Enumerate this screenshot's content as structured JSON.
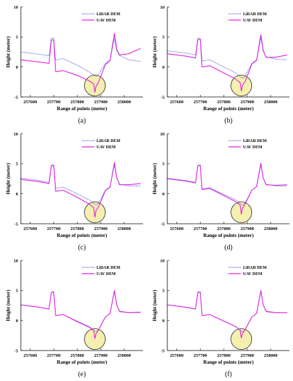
{
  "panel_colors": {
    "lidar": "#2f3fd8",
    "uav": "#e020e0",
    "circle_fill": "#f5efb0",
    "circle_stroke": "#222222"
  },
  "chart_data": [
    {
      "type": "line",
      "caption": "(a)",
      "xlabel": "Range of points (meter)",
      "ylabel": "Height (meter)",
      "xlim": [
        257560,
        258080
      ],
      "ylim": [
        -5,
        10
      ],
      "xticks": [
        257600,
        257700,
        257800,
        257900,
        258000
      ],
      "yticks": [
        10,
        5,
        0,
        -5
      ],
      "legend_position": "top-right",
      "highlight_circle_center": [
        257875,
        -3.1
      ],
      "series": [
        {
          "name": "LiDAR DEM",
          "style": "dotted",
          "x": [
            257560,
            257640,
            257680,
            257690,
            257700,
            257708,
            257740,
            257800,
            257850,
            257870,
            257880,
            257890,
            257920,
            257940,
            257958,
            257968,
            257980,
            258020,
            258070
          ],
          "y": [
            2.5,
            2.1,
            1.9,
            4.8,
            4.8,
            1.2,
            1.4,
            0.3,
            -0.8,
            -1.3,
            -1.6,
            -1.3,
            0.6,
            1.2,
            4.8,
            2.6,
            1.9,
            1.2,
            0.9
          ]
        },
        {
          "name": "UAV DEM",
          "style": "solid",
          "x": [
            257560,
            257640,
            257680,
            257690,
            257700,
            257708,
            257740,
            257800,
            257850,
            257870,
            257875,
            257880,
            257890,
            257920,
            257940,
            257958,
            257968,
            257980,
            258020,
            258070
          ],
          "y": [
            1.2,
            0.8,
            0.6,
            4.5,
            4.5,
            -0.8,
            -0.6,
            -1.4,
            -2.3,
            -2.8,
            -4.2,
            -3.2,
            -2.6,
            0.4,
            1.1,
            5.6,
            3.0,
            2.0,
            2.2,
            3.1
          ]
        }
      ]
    },
    {
      "type": "line",
      "caption": "(b)",
      "xlabel": "Range of points (meter)",
      "ylabel": "Height (meter)",
      "xlim": [
        257560,
        258080
      ],
      "ylim": [
        -5,
        10
      ],
      "xticks": [
        257600,
        257700,
        257800,
        257900,
        258000
      ],
      "yticks": [
        10,
        5,
        0,
        -5
      ],
      "legend_position": "top-right",
      "highlight_circle_center": [
        257875,
        -3.1
      ],
      "series": [
        {
          "name": "LiDAR DEM",
          "style": "dotted",
          "x": [
            257560,
            257640,
            257680,
            257690,
            257700,
            257708,
            257740,
            257800,
            257850,
            257870,
            257880,
            257890,
            257920,
            257940,
            257958,
            257968,
            257980,
            258020,
            258070
          ],
          "y": [
            2.7,
            2.3,
            2.0,
            4.8,
            4.8,
            1.0,
            1.2,
            0.0,
            -1.0,
            -1.6,
            -1.9,
            -1.6,
            0.6,
            1.2,
            4.8,
            2.6,
            1.7,
            1.3,
            1.2
          ]
        },
        {
          "name": "UAV DEM",
          "style": "solid",
          "x": [
            257560,
            257640,
            257680,
            257690,
            257700,
            257708,
            257740,
            257800,
            257850,
            257870,
            257875,
            257880,
            257890,
            257920,
            257940,
            257958,
            257968,
            257980,
            258020,
            258070
          ],
          "y": [
            2.2,
            1.8,
            1.5,
            4.6,
            4.6,
            0.0,
            0.2,
            -1.0,
            -2.0,
            -2.6,
            -4.0,
            -3.0,
            -2.5,
            0.5,
            1.1,
            5.4,
            2.8,
            1.6,
            1.6,
            2.0
          ]
        }
      ]
    },
    {
      "type": "line",
      "caption": "(c)",
      "xlabel": "Range of points (meter)",
      "ylabel": "Height (meter)",
      "xlim": [
        257560,
        258080
      ],
      "ylim": [
        -5,
        10
      ],
      "xticks": [
        257600,
        257700,
        257800,
        257900,
        258000
      ],
      "yticks": [
        10,
        5,
        0,
        -5
      ],
      "legend_position": "top-right",
      "highlight_circle_center": [
        257875,
        -3.1
      ],
      "series": [
        {
          "name": "LiDAR DEM",
          "style": "dotted",
          "x": [
            257560,
            257640,
            257680,
            257690,
            257700,
            257708,
            257740,
            257800,
            257850,
            257870,
            257880,
            257890,
            257920,
            257940,
            257958,
            257968,
            257980,
            258020,
            258070
          ],
          "y": [
            2.6,
            2.2,
            1.9,
            4.8,
            4.8,
            0.9,
            1.1,
            0.0,
            -1.0,
            -1.6,
            -1.9,
            -1.6,
            0.6,
            1.2,
            4.8,
            2.6,
            1.6,
            1.3,
            1.3
          ]
        },
        {
          "name": "UAV DEM",
          "style": "solid",
          "x": [
            257560,
            257640,
            257680,
            257690,
            257700,
            257708,
            257740,
            257800,
            257850,
            257870,
            257875,
            257880,
            257890,
            257920,
            257940,
            257958,
            257968,
            257980,
            258020,
            258070
          ],
          "y": [
            2.4,
            2.0,
            1.7,
            4.7,
            4.7,
            0.4,
            0.6,
            -0.6,
            -1.7,
            -2.3,
            -3.9,
            -2.8,
            -2.2,
            0.5,
            1.1,
            5.2,
            2.7,
            1.5,
            1.5,
            1.7
          ]
        }
      ]
    },
    {
      "type": "line",
      "caption": "(d)",
      "xlabel": "Range of points (meter)",
      "ylabel": "Height (meter)",
      "xlim": [
        257560,
        258080
      ],
      "ylim": [
        -5,
        10
      ],
      "xticks": [
        257600,
        257700,
        257800,
        257900,
        258000
      ],
      "yticks": [
        10,
        5,
        0,
        -5
      ],
      "legend_position": "top-right",
      "highlight_circle_center": [
        257875,
        -3.1
      ],
      "series": [
        {
          "name": "LiDAR DEM",
          "style": "dotted",
          "x": [
            257560,
            257640,
            257680,
            257690,
            257700,
            257708,
            257740,
            257800,
            257850,
            257870,
            257880,
            257890,
            257920,
            257940,
            257958,
            257968,
            257980,
            258020,
            258070
          ],
          "y": [
            2.6,
            2.2,
            1.9,
            4.8,
            4.8,
            0.8,
            1.0,
            -0.1,
            -1.0,
            -1.6,
            -1.9,
            -1.6,
            0.6,
            1.2,
            4.8,
            2.6,
            1.6,
            1.3,
            1.3
          ]
        },
        {
          "name": "UAV DEM",
          "style": "solid",
          "x": [
            257560,
            257640,
            257680,
            257690,
            257700,
            257708,
            257740,
            257800,
            257850,
            257870,
            257875,
            257880,
            257890,
            257920,
            257940,
            257958,
            257968,
            257980,
            258020,
            258070
          ],
          "y": [
            2.5,
            2.1,
            1.8,
            4.7,
            4.7,
            0.7,
            0.9,
            -0.3,
            -1.3,
            -1.9,
            -3.4,
            -2.4,
            -1.8,
            0.6,
            1.2,
            5.1,
            2.6,
            1.5,
            1.4,
            1.5
          ]
        }
      ]
    },
    {
      "type": "line",
      "caption": "(e)",
      "xlabel": "Range of points (meter)",
      "ylabel": "Height (meter)",
      "xlim": [
        257560,
        258080
      ],
      "ylim": [
        -5,
        10
      ],
      "xticks": [
        257600,
        257700,
        257800,
        257900,
        258000
      ],
      "yticks": [
        10,
        5,
        0,
        -5
      ],
      "legend_position": "top-right",
      "highlight_circle_center": [
        257875,
        -3.1
      ],
      "series": [
        {
          "name": "LiDAR DEM",
          "style": "dotted",
          "x": [
            257560,
            257640,
            257680,
            257690,
            257700,
            257708,
            257740,
            257800,
            257850,
            257870,
            257880,
            257890,
            257920,
            257940,
            257958,
            257968,
            257980,
            258020,
            258070
          ],
          "y": [
            2.6,
            2.2,
            1.9,
            4.8,
            4.8,
            0.8,
            1.0,
            -0.1,
            -1.0,
            -1.6,
            -1.9,
            -1.6,
            0.6,
            1.2,
            4.8,
            2.6,
            1.6,
            1.3,
            1.3
          ]
        },
        {
          "name": "UAV DEM",
          "style": "solid",
          "x": [
            257560,
            257640,
            257680,
            257690,
            257700,
            257708,
            257740,
            257800,
            257850,
            257870,
            257875,
            257880,
            257890,
            257920,
            257940,
            257958,
            257968,
            257980,
            258020,
            258070
          ],
          "y": [
            2.6,
            2.2,
            1.9,
            4.7,
            4.7,
            0.8,
            1.0,
            -0.2,
            -1.1,
            -1.7,
            -3.0,
            -2.2,
            -1.6,
            0.6,
            1.2,
            5.0,
            2.6,
            1.5,
            1.3,
            1.4
          ]
        }
      ]
    },
    {
      "type": "line",
      "caption": "(f)",
      "xlabel": "Range of points (meter)",
      "ylabel": "Height (meter)",
      "xlim": [
        257560,
        258080
      ],
      "ylim": [
        -5,
        10
      ],
      "xticks": [
        257600,
        257700,
        257800,
        257900,
        258000
      ],
      "yticks": [
        10,
        5,
        0,
        -5
      ],
      "legend_position": "top-right",
      "highlight_circle_center": [
        257875,
        -3.1
      ],
      "series": [
        {
          "name": "LiDAR DEM",
          "style": "dotted",
          "x": [
            257560,
            257640,
            257680,
            257690,
            257700,
            257708,
            257740,
            257800,
            257850,
            257870,
            257880,
            257890,
            257920,
            257940,
            257958,
            257968,
            257980,
            258020,
            258070
          ],
          "y": [
            2.6,
            2.2,
            1.9,
            4.8,
            4.8,
            0.8,
            1.0,
            -0.1,
            -1.0,
            -1.6,
            -1.9,
            -1.6,
            0.6,
            1.2,
            4.8,
            2.6,
            1.6,
            1.3,
            1.3
          ]
        },
        {
          "name": "UAV DEM",
          "style": "solid",
          "x": [
            257560,
            257640,
            257680,
            257690,
            257700,
            257708,
            257740,
            257800,
            257850,
            257870,
            257875,
            257880,
            257890,
            257920,
            257940,
            257958,
            257968,
            257980,
            258020,
            258070
          ],
          "y": [
            2.6,
            2.2,
            1.9,
            4.7,
            4.7,
            0.8,
            1.0,
            -0.1,
            -1.0,
            -1.6,
            -2.9,
            -2.1,
            -1.6,
            0.6,
            1.2,
            5.0,
            2.6,
            1.5,
            1.3,
            1.3
          ]
        }
      ]
    }
  ]
}
